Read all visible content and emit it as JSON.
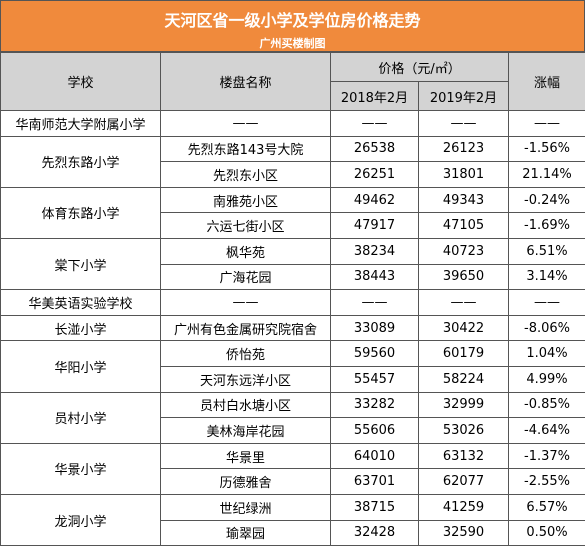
{
  "header": {
    "title": "天河区省一级小学及学位房价格走势",
    "subtitle": "广州买楼制图"
  },
  "table": {
    "columns": {
      "school": "学校",
      "property": "楼盘名称",
      "price": "价格（元/㎡）",
      "y2018": "2018年2月",
      "y2019": "2019年2月",
      "change": "涨幅"
    },
    "groups": [
      {
        "school": "华南师范大学附属小学",
        "rows": [
          [
            "——",
            "——",
            "——",
            "——"
          ]
        ]
      },
      {
        "school": "先烈东路小学",
        "rows": [
          [
            "先烈东路143号大院",
            "26538",
            "26123",
            "-1.56%"
          ],
          [
            "先烈东小区",
            "26251",
            "31801",
            "21.14%"
          ]
        ]
      },
      {
        "school": "体育东路小学",
        "rows": [
          [
            "南雅苑小区",
            "49462",
            "49343",
            "-0.24%"
          ],
          [
            "六运七街小区",
            "47917",
            "47105",
            "-1.69%"
          ]
        ]
      },
      {
        "school": "棠下小学",
        "rows": [
          [
            "枫华苑",
            "38234",
            "40723",
            "6.51%"
          ],
          [
            "广海花园",
            "38443",
            "39650",
            "3.14%"
          ]
        ]
      },
      {
        "school": "华美英语实验学校",
        "rows": [
          [
            "——",
            "——",
            "——",
            "——"
          ]
        ]
      },
      {
        "school": "长湴小学",
        "rows": [
          [
            "广州有色金属研究院宿舍",
            "33089",
            "30422",
            "-8.06%"
          ]
        ]
      },
      {
        "school": "华阳小学",
        "rows": [
          [
            "侨怡苑",
            "59560",
            "60179",
            "1.04%"
          ],
          [
            "天河东远洋小区",
            "55457",
            "58224",
            "4.99%"
          ]
        ]
      },
      {
        "school": "员村小学",
        "rows": [
          [
            "员村白水塘小区",
            "33282",
            "32999",
            "-0.85%"
          ],
          [
            "美林海岸花园",
            "55606",
            "53026",
            "-4.64%"
          ]
        ]
      },
      {
        "school": "华景小学",
        "rows": [
          [
            "华景里",
            "64010",
            "63132",
            "-1.37%"
          ],
          [
            "历德雅舍",
            "63701",
            "62077",
            "-2.55%"
          ]
        ]
      },
      {
        "school": "龙洞小学",
        "rows": [
          [
            "世纪绿洲",
            "38715",
            "41259",
            "6.57%"
          ],
          [
            "瑜翠园",
            "32428",
            "32590",
            "0.50%"
          ]
        ]
      }
    ]
  }
}
